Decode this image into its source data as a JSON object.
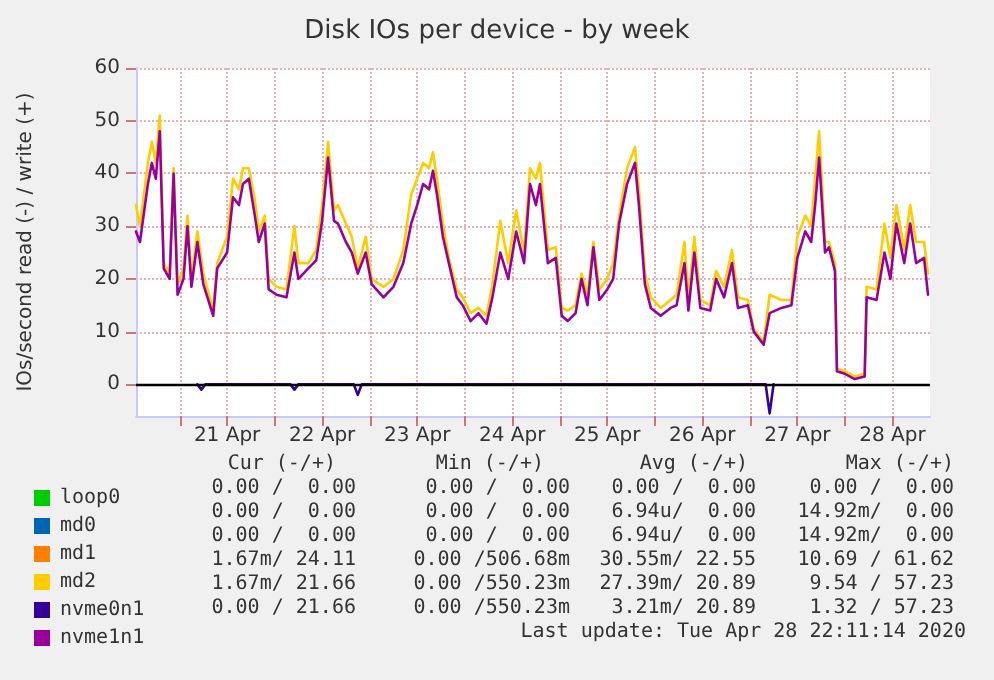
{
  "chart_data": {
    "type": "line",
    "title": "Disk IOs per device - by week",
    "ylabel": "IOs/second read (-) / write (+)",
    "x": [
      "2020-04-20T13:00",
      "2020-04-20T14:00",
      "2020-04-20T16:00",
      "2020-04-20T17:00",
      "2020-04-20T18:00",
      "2020-04-20T19:00",
      "2020-04-20T20:00",
      "2020-04-20T21:30",
      "2020-04-20T22:30",
      "2020-04-20T23:30",
      "2020-04-21T01:00",
      "2020-04-21T02:00",
      "2020-04-21T03:00",
      "2020-04-21T04:30",
      "2020-04-21T06:00",
      "2020-04-21T08:30",
      "2020-04-21T09:30",
      "2020-04-21T12:00",
      "2020-04-21T13:30",
      "2020-04-21T15:00",
      "2020-04-21T16:00",
      "2020-04-21T17:30",
      "2020-04-21T19:00",
      "2020-04-21T20:00",
      "2020-04-21T21:30",
      "2020-04-21T22:30",
      "2020-04-22T00:30",
      "2020-04-22T03:00",
      "2020-04-22T05:00",
      "2020-04-22T06:00",
      "2020-04-22T08:30",
      "2020-04-22T10:30",
      "2020-04-22T12:00",
      "2020-04-22T13:30",
      "2020-04-22T15:00",
      "2020-04-22T16:00",
      "2020-04-22T18:00",
      "2020-04-22T19:30",
      "2020-04-22T21:00",
      "2020-04-22T23:00",
      "2020-04-23T00:30",
      "2020-04-23T03:30",
      "2020-04-23T06:00",
      "2020-04-23T08:30",
      "2020-04-23T10:30",
      "2020-04-23T12:00",
      "2020-04-23T13:30",
      "2020-04-23T15:00",
      "2020-04-23T16:00",
      "2020-04-23T17:00",
      "2020-04-23T18:30",
      "2020-04-23T20:00",
      "2020-04-23T22:00",
      "2020-04-23T23:30",
      "2020-04-24T01:30",
      "2020-04-24T03:30",
      "2020-04-24T05:30",
      "2020-04-24T07:00",
      "2020-04-24T09:00",
      "2020-04-24T11:00",
      "2020-04-24T13:00",
      "2020-04-24T15:00",
      "2020-04-24T16:30",
      "2020-04-24T18:00",
      "2020-04-24T19:00",
      "2020-04-24T21:00",
      "2020-04-24T23:00",
      "2020-04-25T00:30",
      "2020-04-25T02:00",
      "2020-04-25T04:00",
      "2020-04-25T05:30",
      "2020-04-25T07:00",
      "2020-04-25T08:30",
      "2020-04-25T10:00",
      "2020-04-25T12:00",
      "2020-04-25T13:30",
      "2020-04-25T15:00",
      "2020-04-25T17:00",
      "2020-04-25T19:00",
      "2020-04-25T20:00",
      "2020-04-25T21:30",
      "2020-04-25T23:00",
      "2020-04-26T01:30",
      "2020-04-26T04:00",
      "2020-04-26T05:30",
      "2020-04-26T07:30",
      "2020-04-26T08:30",
      "2020-04-26T10:00",
      "2020-04-26T11:30",
      "2020-04-26T14:00",
      "2020-04-26T15:30",
      "2020-04-26T17:30",
      "2020-04-26T19:30",
      "2020-04-26T21:00",
      "2020-04-26T23:30",
      "2020-04-27T01:00",
      "2020-04-27T03:30",
      "2020-04-27T05:00",
      "2020-04-27T08:00",
      "2020-04-27T10:30",
      "2020-04-27T12:00",
      "2020-04-27T14:00",
      "2020-04-27T15:30",
      "2020-04-27T16:30",
      "2020-04-27T17:30",
      "2020-04-27T19:00",
      "2020-04-27T20:00",
      "2020-04-27T21:30",
      "2020-04-27T22:00",
      "2020-04-28T00:00",
      "2020-04-28T02:30",
      "2020-04-28T05:00",
      "2020-04-28T05:30",
      "2020-04-28T08:00",
      "2020-04-28T10:00",
      "2020-04-28T11:30",
      "2020-04-28T13:00",
      "2020-04-28T15:00",
      "2020-04-28T16:30",
      "2020-04-28T18:00",
      "2020-04-28T20:00",
      "2020-04-28T21:00"
    ],
    "series": [
      {
        "name": "loop0",
        "color": "#00cc00",
        "values": [
          null,
          null,
          null,
          null,
          null,
          null,
          null,
          null,
          null,
          null,
          null,
          null,
          null,
          null,
          null,
          null,
          null,
          null,
          null,
          null,
          null,
          null,
          null,
          null,
          null,
          null,
          null,
          null,
          null,
          null,
          null,
          null,
          null,
          null,
          null,
          null,
          null,
          null,
          null,
          null,
          null,
          null,
          null,
          null,
          null,
          null,
          null,
          null,
          null,
          null,
          null,
          null,
          null,
          null,
          null,
          null,
          null,
          null,
          null,
          null,
          null,
          null,
          null,
          null,
          null,
          null,
          null,
          null,
          null,
          null,
          null,
          null,
          null,
          null,
          null,
          null,
          null,
          null,
          null,
          null,
          null,
          null,
          null,
          null,
          null,
          null,
          null,
          null,
          null,
          null,
          null,
          null,
          null,
          null,
          null,
          null,
          null,
          null,
          null,
          null,
          null,
          null,
          null,
          null,
          null,
          null,
          null,
          null,
          null,
          null,
          null,
          null,
          null,
          null,
          null,
          null,
          null,
          null,
          null,
          null,
          null,
          null
        ]
      },
      {
        "name": "md0",
        "color": "#0066b3",
        "values": [
          null,
          null,
          null,
          null,
          null,
          null,
          null,
          null,
          null,
          null,
          null,
          null,
          null,
          null,
          null,
          null,
          null,
          null,
          null,
          null,
          null,
          null,
          null,
          null,
          null,
          null,
          null,
          null,
          null,
          null,
          null,
          null,
          null,
          null,
          null,
          null,
          null,
          null,
          null,
          null,
          null,
          null,
          null,
          null,
          null,
          null,
          null,
          null,
          null,
          null,
          null,
          null,
          null,
          null,
          null,
          null,
          null,
          null,
          null,
          null,
          null,
          null,
          null,
          null,
          null,
          null,
          null,
          null,
          null,
          null,
          null,
          null,
          null,
          null,
          null,
          null,
          null,
          null,
          null,
          null,
          null,
          null,
          null,
          null,
          null,
          null,
          null,
          null,
          null,
          null,
          null,
          null,
          null,
          null,
          null,
          null,
          null,
          null,
          null,
          null,
          null,
          null,
          null,
          null,
          null,
          null,
          null,
          null,
          null,
          null,
          null,
          null,
          null,
          null,
          null,
          null,
          null,
          null,
          null,
          null,
          null,
          null
        ]
      },
      {
        "name": "md1",
        "color": "#ff8000",
        "values": [
          null,
          null,
          null,
          null,
          null,
          null,
          null,
          null,
          null,
          null,
          null,
          null,
          null,
          null,
          null,
          null,
          null,
          null,
          null,
          null,
          null,
          null,
          null,
          null,
          null,
          null,
          null,
          null,
          null,
          null,
          null,
          null,
          null,
          null,
          null,
          null,
          null,
          null,
          null,
          null,
          null,
          null,
          null,
          null,
          null,
          null,
          null,
          null,
          null,
          null,
          null,
          null,
          null,
          null,
          null,
          null,
          null,
          null,
          null,
          null,
          null,
          null,
          null,
          null,
          null,
          null,
          null,
          null,
          null,
          null,
          null,
          null,
          null,
          null,
          null,
          null,
          null,
          null,
          null,
          null,
          null,
          null,
          null,
          null,
          null,
          null,
          null,
          null,
          null,
          null,
          null,
          null,
          null,
          null,
          null,
          null,
          null,
          null,
          null,
          null,
          null,
          null,
          null,
          null,
          null,
          null,
          null,
          null,
          null,
          null,
          null,
          null,
          null,
          null,
          null,
          null,
          null,
          null,
          null,
          null,
          null,
          null
        ]
      },
      {
        "name": "md2",
        "color": "#ffcc00",
        "values": [
          34,
          30,
          42,
          46,
          42,
          51,
          23,
          21,
          41,
          19,
          22,
          32,
          20,
          29,
          21,
          14,
          23,
          28,
          39,
          37,
          41,
          41,
          35,
          29,
          32,
          20,
          18.5,
          18,
          30,
          23,
          23,
          25.5,
          34,
          46,
          33,
          34,
          30.5,
          28,
          22,
          28,
          20,
          18.5,
          20,
          25.5,
          36,
          39,
          42,
          41,
          44,
          39,
          30.5,
          24,
          18,
          16.5,
          13.5,
          14.5,
          13,
          19,
          31,
          23,
          33,
          25,
          41,
          39,
          42,
          25.5,
          26,
          14.5,
          14,
          15,
          21,
          17,
          27,
          18,
          20,
          23,
          32,
          41,
          45,
          37,
          21,
          16.5,
          14.5,
          16,
          17,
          27,
          16,
          28,
          16,
          15,
          21.5,
          18.5,
          25.5,
          16.5,
          16,
          10.5,
          8,
          17,
          16,
          16,
          28,
          32,
          30,
          39,
          48,
          27,
          27,
          23,
          3,
          2.5,
          1.5,
          2,
          18.5,
          18,
          30.5,
          24,
          34,
          25.5,
          34,
          27,
          27,
          21
        ]
      },
      {
        "name": "nvme0n1",
        "color": "#330099",
        "x": [
          "2020-04-21T04:30",
          "2020-04-21T05:30",
          "2020-04-21T06:30",
          "2020-04-22T04:00",
          "2020-04-22T05:00",
          "2020-04-22T06:00",
          "2020-04-22T20:00",
          "2020-04-22T21:00",
          "2020-04-22T22:00",
          "2020-04-27T04:00",
          "2020-04-27T05:00",
          "2020-04-27T06:00"
        ],
        "values": [
          0,
          -1,
          0,
          0,
          -1,
          0,
          0,
          -2,
          0,
          0,
          -5.5,
          0
        ]
      },
      {
        "name": "nvme1n1",
        "color": "#990099",
        "values": [
          29,
          27,
          38,
          42,
          39,
          48,
          22,
          20,
          40,
          17,
          20,
          30,
          18.5,
          27,
          19,
          13,
          22,
          25,
          35.5,
          34,
          38,
          39,
          32,
          27,
          30.5,
          18,
          17,
          16.5,
          25,
          20,
          22,
          23.5,
          31,
          43,
          31,
          30.5,
          27,
          25,
          21,
          25,
          19,
          16.5,
          18.5,
          23,
          30.5,
          34,
          38,
          37,
          40.5,
          36,
          28,
          23,
          16.5,
          15,
          12,
          13.5,
          11.5,
          16.5,
          25,
          20,
          29,
          23,
          38,
          34,
          38,
          23,
          24,
          13,
          12,
          13.5,
          20,
          15,
          26,
          16,
          18,
          20,
          30.5,
          38,
          42,
          34,
          19,
          14.5,
          13,
          14.5,
          15,
          23,
          14,
          25,
          14.5,
          14,
          20,
          16.5,
          23,
          14.5,
          15,
          10,
          7.5,
          13.5,
          14.5,
          15,
          24,
          29,
          27,
          34,
          43,
          25,
          26,
          21.5,
          2.5,
          2,
          1,
          1.5,
          16.5,
          16,
          25,
          20,
          30.5,
          23,
          30.5,
          23,
          24,
          17
        ]
      }
    ],
    "xlim": [
      "2020-04-20T13:00",
      "2020-04-28T21:30"
    ],
    "xticks": [
      {
        "value": "2020-04-21T00:00",
        "label": null
      },
      {
        "value": "2020-04-21T12:00",
        "label": "21 Apr"
      },
      {
        "value": "2020-04-22T00:00",
        "label": null
      },
      {
        "value": "2020-04-22T12:00",
        "label": "22 Apr"
      },
      {
        "value": "2020-04-23T00:00",
        "label": null
      },
      {
        "value": "2020-04-23T12:00",
        "label": "23 Apr"
      },
      {
        "value": "2020-04-24T00:00",
        "label": null
      },
      {
        "value": "2020-04-24T12:00",
        "label": "24 Apr"
      },
      {
        "value": "2020-04-25T00:00",
        "label": null
      },
      {
        "value": "2020-04-25T12:00",
        "label": "25 Apr"
      },
      {
        "value": "2020-04-26T00:00",
        "label": null
      },
      {
        "value": "2020-04-26T12:00",
        "label": "26 Apr"
      },
      {
        "value": "2020-04-27T00:00",
        "label": null
      },
      {
        "value": "2020-04-27T12:00",
        "label": "27 Apr"
      },
      {
        "value": "2020-04-28T00:00",
        "label": null
      },
      {
        "value": "2020-04-28T12:00",
        "label": "28 Apr"
      }
    ],
    "ylim": [
      -6,
      60
    ],
    "yticks": [
      0,
      10,
      20,
      30,
      40,
      50,
      60
    ],
    "grid": true,
    "legend": "bottom left",
    "marker": "none",
    "line_style": "solid",
    "ref_lines": [
      {
        "axis": "y",
        "value": 0,
        "color": "#000000"
      }
    ],
    "annotations": [
      "Cur (-/+)",
      "Min (-/+)",
      "Avg (-/+)",
      "Max (-/+)",
      "0.00 /  0.00",
      "0.00 /  0.00",
      "0.00 /  0.00",
      "0.00 /  0.00",
      "0.00 /  0.00",
      "0.00 /  0.00",
      "6.94u/  0.00",
      "14.92m/  0.00",
      "0.00 /  0.00",
      "0.00 /  0.00",
      "6.94u/  0.00",
      "14.92m/  0.00",
      "1.67m/ 24.11",
      "0.00 /506.68m",
      "30.55m/ 22.55",
      "10.69 / 61.62",
      "1.67m/ 21.66",
      "0.00 /550.23m",
      "27.39m/ 20.89",
      "9.54 / 57.23",
      "0.00 / 21.66",
      "0.00 /550.23m",
      "3.21m/ 20.89",
      "1.32 / 57.23",
      "Last update: Tue Apr 28 22:11:14 2020"
    ]
  }
}
